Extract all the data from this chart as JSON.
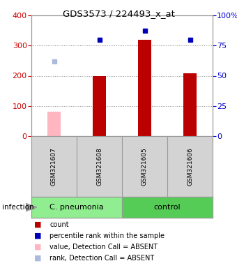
{
  "title": "GDS3573 / 224493_x_at",
  "samples": [
    "GSM321607",
    "GSM321608",
    "GSM321605",
    "GSM321606"
  ],
  "bar_values": [
    80,
    200,
    320,
    208
  ],
  "bar_absent": [
    true,
    false,
    false,
    false
  ],
  "rank_values": [
    248,
    320,
    348,
    320
  ],
  "rank_absent": [
    true,
    false,
    false,
    false
  ],
  "ylim_left": [
    0,
    400
  ],
  "ylim_right": [
    0,
    100
  ],
  "yticks_left": [
    0,
    100,
    200,
    300,
    400
  ],
  "ytick_labels_right": [
    "0",
    "25",
    "50",
    "75",
    "100%"
  ],
  "yticks_right": [
    0,
    25,
    50,
    75,
    100
  ],
  "groups": [
    {
      "label": "C. pneumonia",
      "samples": [
        0,
        1
      ],
      "color": "#90EE90"
    },
    {
      "label": "control",
      "samples": [
        2,
        3
      ],
      "color": "#55CC55"
    }
  ],
  "bar_color_normal": "#BB0000",
  "bar_color_absent": "#FFB6C1",
  "rank_color_normal": "#0000BB",
  "rank_color_absent": "#AABBDD",
  "bar_width": 0.3,
  "legend_items": [
    {
      "label": "count",
      "color": "#BB0000"
    },
    {
      "label": "percentile rank within the sample",
      "color": "#0000BB"
    },
    {
      "label": "value, Detection Call = ABSENT",
      "color": "#FFB6C1"
    },
    {
      "label": "rank, Detection Call = ABSENT",
      "color": "#AABBDD"
    }
  ],
  "infection_label": "infection",
  "left_axis_color": "#CC0000",
  "right_axis_color": "#0000CC",
  "grid_color": "#888888",
  "background_plot": "#FFFFFF",
  "background_fig": "#FFFFFF"
}
